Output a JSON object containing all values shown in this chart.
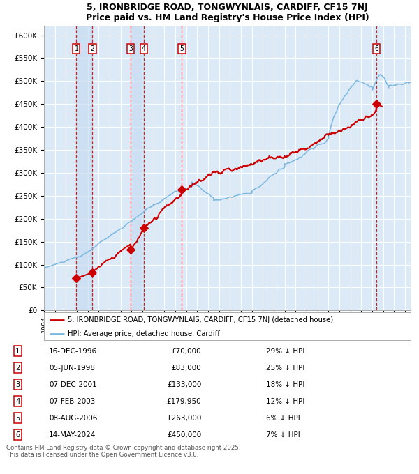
{
  "title_line1": "5, IRONBRIDGE ROAD, TONGWYNLAIS, CARDIFF, CF15 7NJ",
  "title_line2": "Price paid vs. HM Land Registry's House Price Index (HPI)",
  "ylim": [
    0,
    620000
  ],
  "xlim_start": 1994.0,
  "xlim_end": 2027.5,
  "yticks": [
    0,
    50000,
    100000,
    150000,
    200000,
    250000,
    300000,
    350000,
    400000,
    450000,
    500000,
    550000,
    600000
  ],
  "ytick_labels": [
    "£0",
    "£50K",
    "£100K",
    "£150K",
    "£200K",
    "£250K",
    "£300K",
    "£350K",
    "£400K",
    "£450K",
    "£500K",
    "£550K",
    "£600K"
  ],
  "bg_color": "#dce9f7",
  "grid_color": "#ffffff",
  "hpi_line_color": "#7ab8e0",
  "price_line_color": "#cc0000",
  "marker_color": "#cc0000",
  "sale_dates_x": [
    1996.96,
    1998.43,
    2001.93,
    2003.1,
    2006.6,
    2024.37
  ],
  "sale_prices_y": [
    70000,
    83000,
    133000,
    179950,
    263000,
    450000
  ],
  "sale_labels": [
    "1",
    "2",
    "3",
    "4",
    "5",
    "6"
  ],
  "legend_price_label": "5, IRONBRIDGE ROAD, TONGWYNLAIS, CARDIFF, CF15 7NJ (detached house)",
  "legend_hpi_label": "HPI: Average price, detached house, Cardiff",
  "table_data": [
    [
      "1",
      "16-DEC-1996",
      "£70,000",
      "29% ↓ HPI"
    ],
    [
      "2",
      "05-JUN-1998",
      "£83,000",
      "25% ↓ HPI"
    ],
    [
      "3",
      "07-DEC-2001",
      "£133,000",
      "18% ↓ HPI"
    ],
    [
      "4",
      "07-FEB-2003",
      "£179,950",
      "12% ↓ HPI"
    ],
    [
      "5",
      "08-AUG-2006",
      "£263,000",
      "6% ↓ HPI"
    ],
    [
      "6",
      "14-MAY-2024",
      "£450,000",
      "7% ↓ HPI"
    ]
  ],
  "footer_text": "Contains HM Land Registry data © Crown copyright and database right 2025.\nThis data is licensed under the Open Government Licence v3.0.",
  "vline_color": "#cc0000",
  "vspan_color": "#c8dcf0"
}
